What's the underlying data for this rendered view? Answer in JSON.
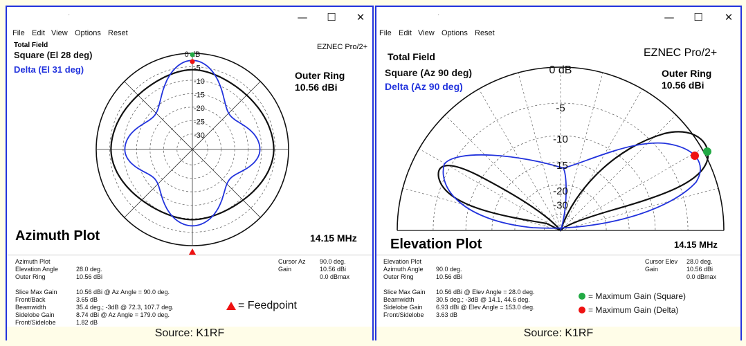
{
  "left_window": {
    "title_dot": "·",
    "controls": {
      "minimize": "—",
      "maximize": "☐",
      "close": "✕"
    },
    "menu": [
      "File",
      "Edit",
      "View",
      "Options",
      "Reset"
    ],
    "plot": {
      "header": "Total Field",
      "square_label": "Square (El 28 deg)",
      "delta_label": "Delta (El 31 deg)",
      "app_name": "EZNEC Pro/2+",
      "outer_ring_title": "Outer Ring",
      "outer_ring_value": "10.56 dBi",
      "db_ticks": [
        "0 dB",
        "-5",
        "-10",
        "-15",
        "-20",
        "-25",
        "-30"
      ],
      "plot_title": "Azimuth Plot",
      "frequency": "14.15 MHz"
    },
    "info": {
      "header": "Azimuth Plot",
      "rows_top": [
        {
          "label": "Elevation Angle",
          "value": "28.0 deg."
        },
        {
          "label": "Outer Ring",
          "value": "10.56 dBi"
        }
      ],
      "cursor": [
        {
          "label": "Cursor Az",
          "value": "90.0 deg."
        },
        {
          "label": "Gain",
          "value": "10.56 dBi"
        },
        {
          "label": "",
          "value": "0.0 dBmax"
        }
      ],
      "rows_bottom": [
        {
          "label": "Slice Max Gain",
          "value": "10.56 dBi @ Az Angle = 90.0 deg."
        },
        {
          "label": "Front/Back",
          "value": "3.65 dB"
        },
        {
          "label": "Beamwidth",
          "value": "35.4 deg.; -3dB @ 72.3, 107.7 deg."
        },
        {
          "label": "Sidelobe Gain",
          "value": "8.74 dBi @ Az Angle = 179.0 deg."
        },
        {
          "label": "Front/Sidelobe",
          "value": "1.82 dB"
        }
      ],
      "feedpoint_legend": "= Feedpoint"
    },
    "source": "Source: K1RF"
  },
  "right_window": {
    "title_dot": "·",
    "controls": {
      "minimize": "—",
      "maximize": "☐",
      "close": "✕"
    },
    "menu": [
      "File",
      "Edit",
      "View",
      "Options",
      "Reset"
    ],
    "plot": {
      "header": "Total Field",
      "square_label": "Square (Az 90 deg)",
      "delta_label": "Delta (Az 90 deg)",
      "app_name": "EZNEC Pro/2+",
      "outer_ring_title": "Outer Ring",
      "outer_ring_value": "10.56 dBi",
      "db_ticks": [
        "0 dB",
        "-5",
        "-10",
        "-15",
        "-20",
        "-30"
      ],
      "plot_title": "Elevation Plot",
      "frequency": "14.15 MHz"
    },
    "info": {
      "header": "Elevation Plot",
      "rows_top": [
        {
          "label": "Azimuth Angle",
          "value": "90.0 deg."
        },
        {
          "label": "Outer Ring",
          "value": "10.56 dBi"
        }
      ],
      "cursor": [
        {
          "label": "Cursor Elev",
          "value": "28.0 deg."
        },
        {
          "label": "Gain",
          "value": "10.56 dBi"
        },
        {
          "label": "",
          "value": "0.0 dBmax"
        }
      ],
      "rows_bottom": [
        {
          "label": "Slice Max Gain",
          "value": "10.56 dBi @ Elev Angle = 28.0 deg."
        },
        {
          "label": "Beamwidth",
          "value": "30.5 deg.; -3dB @ 14.1, 44.6 deg."
        },
        {
          "label": "Sidelobe Gain",
          "value": "6.93 dBi @ Elev Angle = 153.0 deg."
        },
        {
          "label": "Front/Sidelobe",
          "value": "3.63 dB"
        }
      ],
      "legend_square": "= Maximum Gain (Square)",
      "legend_delta": "= Maximum Gain (Delta)"
    },
    "source": "Source: K1RF"
  },
  "colors": {
    "square_trace": "#111111",
    "delta_trace": "#2233dd",
    "max_square": "#22aa44",
    "max_delta": "#ee1111",
    "feedpoint": "#ee1111",
    "window_border": "#2233dd"
  }
}
